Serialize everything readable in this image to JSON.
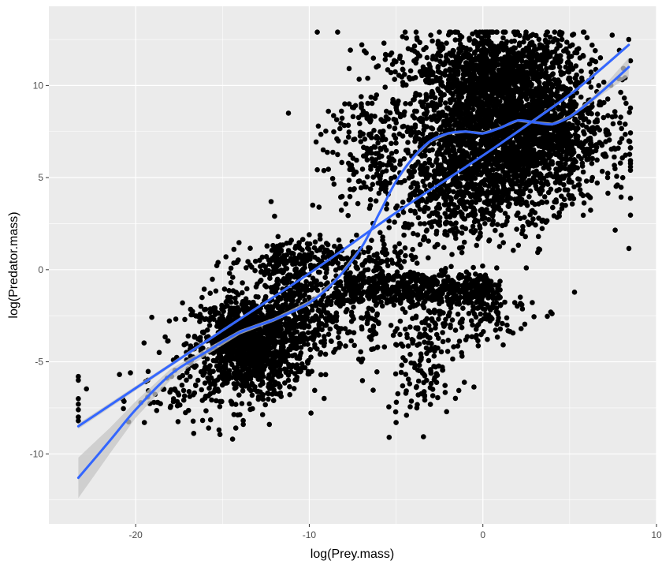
{
  "chart_data": {
    "type": "scatter",
    "title": "",
    "xlabel": "log(Prey.mass)",
    "ylabel": "log(Predator.mass)",
    "xlim": [
      -25,
      10
    ],
    "ylim": [
      -13.8,
      14.3
    ],
    "x_ticks": [
      -20,
      -10,
      0,
      10
    ],
    "x_tick_labels": [
      "-20",
      "-10",
      "0",
      "10"
    ],
    "y_ticks": [
      -10,
      -5,
      0,
      5,
      10
    ],
    "y_tick_labels": [
      "-10",
      "-5",
      "0",
      "5",
      "10"
    ],
    "grid": true,
    "legend": "none",
    "colors": {
      "panel_background": "#ebebeb",
      "grid": "#ffffff",
      "points": "#000000",
      "smooth_line": "#3366ff",
      "ribbon": "#c6c6c6",
      "axis_text": "#4d4d4d",
      "axis_title": "#000000"
    },
    "series": [
      {
        "kind": "points",
        "clusters": [
          {
            "cx": -13.5,
            "cy": -4.2,
            "sx": 1.6,
            "sy": 1.4,
            "n": 1100
          },
          {
            "cx": -10.5,
            "cy": -2.2,
            "sx": 1.3,
            "sy": 1.4,
            "n": 320
          },
          {
            "cx": -11.5,
            "cy": 0.4,
            "sx": 1.6,
            "sy": 0.6,
            "n": 140
          },
          {
            "cx": 1.5,
            "cy": 7.5,
            "sx": 2.7,
            "sy": 2.1,
            "n": 2600
          },
          {
            "cx": 1.0,
            "cy": 11.0,
            "sx": 2.6,
            "sy": 1.0,
            "n": 700
          },
          {
            "cx": -1.5,
            "cy": 4.0,
            "sx": 2.0,
            "sy": 1.4,
            "n": 400
          },
          {
            "cx": -3.5,
            "cy": -4.5,
            "sx": 1.1,
            "sy": 1.6,
            "n": 160
          },
          {
            "cx": -1.0,
            "cy": -2.3,
            "sx": 1.9,
            "sy": 0.9,
            "n": 140
          },
          {
            "cx": -6.0,
            "cy": 6.5,
            "sx": 1.5,
            "sy": 2.2,
            "n": 260
          },
          {
            "cx": -18.0,
            "cy": -6.8,
            "sx": 1.6,
            "sy": 0.9,
            "n": 60
          }
        ],
        "bands": [
          {
            "x_from": -8.5,
            "x_to": 1.0,
            "y": -1.3,
            "sy": 0.35,
            "n": 380
          },
          {
            "x_from": -8.0,
            "x_to": 0.5,
            "y": -0.6,
            "sy": 0.3,
            "n": 200
          },
          {
            "x_from": -12.0,
            "x_to": -4.0,
            "y": 0.6,
            "sy": 0.4,
            "n": 160
          },
          {
            "x_from": -15.5,
            "x_to": -6.0,
            "y": -3.0,
            "sy": 0.8,
            "n": 200
          }
        ],
        "extra_points": [
          [
            -23.3,
            -5.8
          ],
          [
            -23.3,
            -6.0
          ],
          [
            -23.3,
            -7.0
          ],
          [
            -23.3,
            -7.3
          ],
          [
            -23.3,
            -7.6
          ],
          [
            -23.3,
            -8.0
          ],
          [
            -23.3,
            -8.2
          ],
          [
            -20.3,
            -5.6
          ],
          [
            -19.3,
            -6.0
          ],
          [
            -19.5,
            -8.3
          ],
          [
            -17.3,
            -1.8
          ],
          [
            -16.8,
            -4.3
          ],
          [
            -16.6,
            -5.3
          ],
          [
            -15.8,
            -8.6
          ],
          [
            -15.2,
            -8.7
          ],
          [
            -13.8,
            -8.4
          ],
          [
            -12.3,
            -8.4
          ],
          [
            -14.8,
            0.7
          ],
          [
            -12.3,
            0.3
          ],
          [
            -11.8,
            1.8
          ],
          [
            -12.2,
            3.7
          ],
          [
            -12.0,
            2.9
          ],
          [
            -10.0,
            1.9
          ],
          [
            -9.8,
            3.5
          ],
          [
            -11.2,
            8.5
          ],
          [
            -8.9,
            8.6
          ],
          [
            -7.0,
            8.8
          ],
          [
            -6.2,
            9.3
          ],
          [
            -5.7,
            12.3
          ],
          [
            -5.3,
            10.7
          ],
          [
            -5.4,
            -9.1
          ],
          [
            -5.0,
            -8.3
          ],
          [
            -4.4,
            -7.9
          ],
          [
            -7.0,
            -5.0
          ],
          [
            -6.3,
            -4.3
          ],
          [
            -3.0,
            -5.5
          ],
          [
            0.8,
            0.1
          ],
          [
            2.5,
            0.1
          ],
          [
            3.2,
            1.8
          ],
          [
            2.2,
            -3.2
          ],
          [
            0.8,
            -1.2
          ],
          [
            1.0,
            -1.5
          ],
          [
            -0.6,
            -3.0
          ],
          [
            7.8,
            6.6
          ],
          [
            8.2,
            7.9
          ],
          [
            8.4,
            12.5
          ],
          [
            -4.3,
            12.0
          ],
          [
            -3.8,
            12.6
          ],
          [
            -2.1,
            12.3
          ],
          [
            -0.6,
            12.8
          ],
          [
            2.5,
            12.7
          ],
          [
            6.0,
            12.6
          ]
        ]
      },
      {
        "kind": "smooth",
        "name": "",
        "method": "lm",
        "x": [
          -23.3,
          -15,
          -10,
          -5,
          0,
          5,
          8.4
        ],
        "y": [
          -8.5,
          -3.3,
          -0.2,
          3.1,
          6.2,
          9.5,
          12.2
        ],
        "ci_halfwidth": [
          0.15,
          0.08,
          0.06,
          0.05,
          0.05,
          0.06,
          0.09
        ]
      },
      {
        "kind": "smooth",
        "name": "",
        "method": "gam",
        "x": [
          -23.3,
          -21.5,
          -20.0,
          -18.0,
          -16.0,
          -14.0,
          -12.0,
          -10.0,
          -8.5,
          -7.0,
          -6.0,
          -5.0,
          -4.0,
          -3.0,
          -2.0,
          -1.0,
          0.0,
          1.0,
          2.0,
          3.0,
          4.0,
          5.0,
          6.0,
          7.0,
          8.4
        ],
        "y": [
          -11.3,
          -9.3,
          -7.6,
          -5.7,
          -4.5,
          -3.4,
          -2.7,
          -1.8,
          -0.6,
          1.2,
          3.0,
          4.8,
          6.1,
          7.0,
          7.4,
          7.5,
          7.4,
          7.7,
          8.1,
          8.0,
          7.9,
          8.3,
          9.0,
          9.8,
          11.0
        ],
        "ci_halfwidth": [
          1.1,
          0.7,
          0.45,
          0.3,
          0.18,
          0.12,
          0.1,
          0.12,
          0.1,
          0.1,
          0.1,
          0.1,
          0.1,
          0.08,
          0.07,
          0.07,
          0.07,
          0.07,
          0.07,
          0.08,
          0.08,
          0.09,
          0.12,
          0.2,
          0.5
        ]
      }
    ]
  }
}
